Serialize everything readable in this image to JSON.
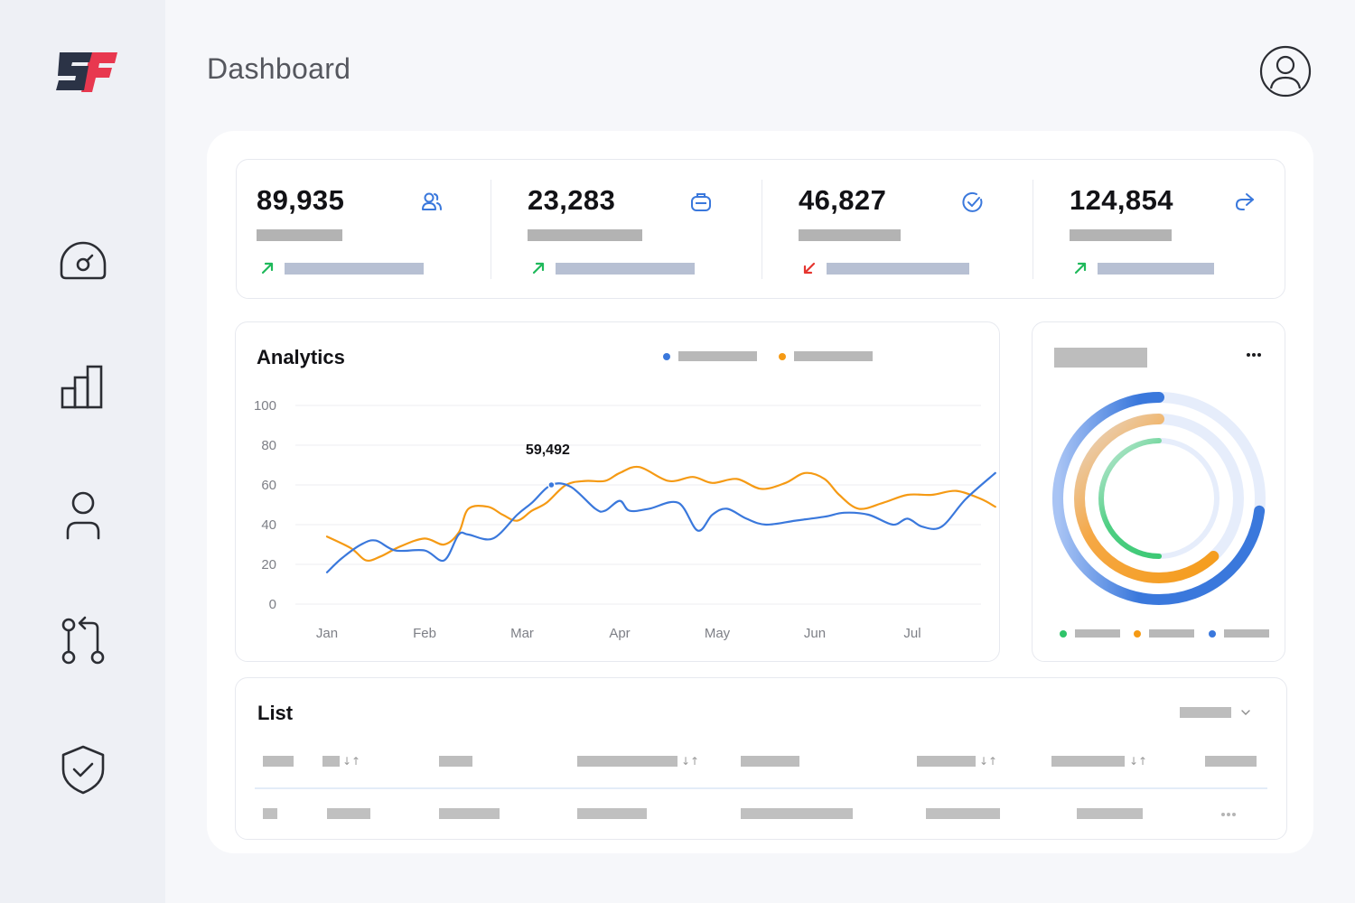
{
  "page": {
    "title": "Dashboard"
  },
  "sidebar": {
    "logo_text": "SF",
    "items": [
      {
        "icon": "gauge-icon"
      },
      {
        "icon": "bar-chart-icon"
      },
      {
        "icon": "user-icon"
      },
      {
        "icon": "git-pull-request-icon"
      },
      {
        "icon": "shield-check-icon"
      }
    ]
  },
  "header": {
    "avatar_icon": "user-circle-icon"
  },
  "stats": [
    {
      "value": "89,935",
      "icon": "users-icon",
      "trend": "up",
      "trend_color": "#1fb95b"
    },
    {
      "value": "23,283",
      "icon": "briefcase-icon",
      "trend": "up",
      "trend_color": "#1fb95b"
    },
    {
      "value": "46,827",
      "icon": "check-circle-icon",
      "trend": "down",
      "trend_color": "#e5352f"
    },
    {
      "value": "124,854",
      "icon": "share-icon",
      "trend": "up",
      "trend_color": "#1fb95b"
    }
  ],
  "analytics": {
    "title": "Analytics",
    "tooltip_value": "59,492",
    "colors": {
      "series1": "#3a78dc",
      "series2": "#f59a14"
    }
  },
  "chart_data": {
    "type": "line",
    "title": "Analytics",
    "categories": [
      "Jan",
      "Feb",
      "Mar",
      "Apr",
      "May",
      "Jun",
      "Jul"
    ],
    "ylim": [
      0,
      100
    ],
    "yticks": [
      100,
      80,
      60,
      40,
      20,
      0
    ],
    "grid": true,
    "legend": "top-center",
    "series": [
      {
        "color": "#3a78dc",
        "x": [
          0,
          0.15,
          0.35,
          0.5,
          0.7,
          1.0,
          1.2,
          1.35,
          1.45,
          1.7,
          1.95,
          2.1,
          2.3,
          2.5,
          2.75,
          2.85,
          3.0,
          3.1,
          3.3,
          3.6,
          3.8,
          3.95,
          4.1,
          4.3,
          4.5,
          4.8,
          5.1,
          5.3,
          5.55,
          5.8,
          5.95,
          6.1,
          6.3,
          6.55,
          6.85
        ],
        "y": [
          16,
          23,
          30,
          32,
          27,
          27,
          22,
          35,
          35,
          33,
          45,
          51,
          60,
          59,
          48,
          47,
          52,
          47,
          48,
          51,
          37,
          45,
          48,
          43,
          40,
          42,
          44,
          46,
          45,
          40,
          43,
          39,
          39,
          53,
          66
        ]
      },
      {
        "color": "#f59a14",
        "x": [
          0,
          0.25,
          0.4,
          0.55,
          0.75,
          1.0,
          1.2,
          1.35,
          1.45,
          1.65,
          1.8,
          1.95,
          2.1,
          2.25,
          2.45,
          2.65,
          2.85,
          3.0,
          3.2,
          3.5,
          3.75,
          3.95,
          4.2,
          4.45,
          4.7,
          4.9,
          5.1,
          5.25,
          5.45,
          5.7,
          5.95,
          6.2,
          6.45,
          6.7,
          6.85
        ],
        "y": [
          34,
          28,
          22,
          24,
          29,
          33,
          30,
          36,
          48,
          49,
          45,
          42,
          47,
          51,
          60,
          62,
          62,
          66,
          69,
          62,
          64,
          61,
          63,
          58,
          61,
          66,
          63,
          55,
          48,
          51,
          55,
          55,
          57,
          53,
          49
        ]
      }
    ],
    "annotations": [
      {
        "text": "59,492",
        "x": 2.3,
        "y": 60
      }
    ]
  },
  "donut": {
    "menu_icon": "more-horizontal-icon",
    "rings": [
      {
        "color": "#3a78dc",
        "fraction": 0.73
      },
      {
        "color": "#f59a14",
        "fraction": 0.62
      },
      {
        "color": "#2fc46a",
        "fraction": 0.5
      }
    ],
    "legend_colors": [
      "#2fc46a",
      "#f59a14",
      "#3a78dc"
    ]
  },
  "list": {
    "title": "List",
    "sort_glyph": "↓↑",
    "row_menu_icon": "more-horizontal-icon",
    "filter_icon": "chevron-down-icon"
  }
}
